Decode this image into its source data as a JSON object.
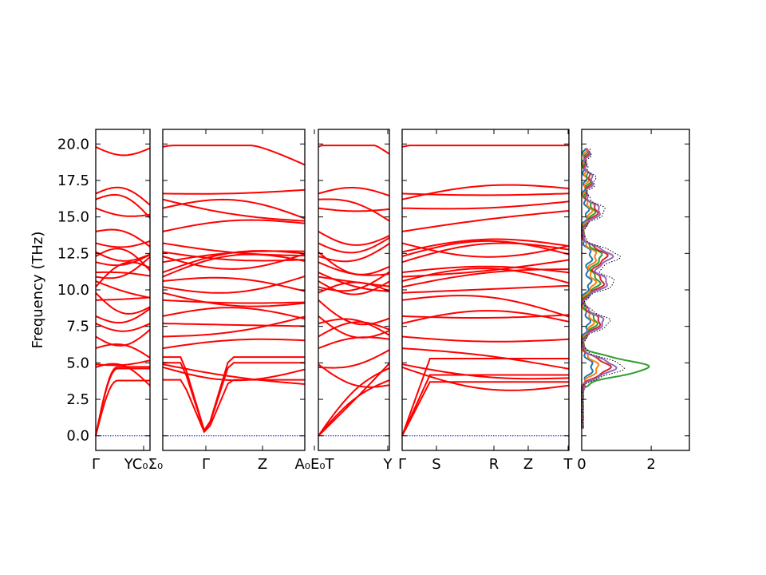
{
  "chart_data": {
    "type": "line",
    "ylabel": "Frequency (THz)",
    "ylim": [
      -1.0,
      21.0
    ],
    "yticks": [
      "0.0",
      "2.5",
      "5.0",
      "7.5",
      "10.0",
      "12.5",
      "15.0",
      "17.5",
      "20.0"
    ],
    "band_color": "#ff0000",
    "zero_line_color": "#0000cc",
    "band_panels": [
      {
        "labels": [
          "Γ",
          "YC₀Σ₀"
        ]
      },
      {
        "labels": [
          "Γ",
          "Z",
          "A₀E₀T"
        ]
      },
      {
        "labels": [
          "Y"
        ]
      },
      {
        "labels": [
          "Γ",
          "S",
          "R",
          "Z",
          "T"
        ]
      }
    ],
    "dos_panel": {
      "xticks": [
        "0",
        "2"
      ],
      "xlim": [
        0,
        3.1
      ],
      "series": [
        {
          "color": "#1f77b4"
        },
        {
          "color": "#ff7f0e"
        },
        {
          "color": "#2ca02c"
        },
        {
          "color": "#d62728"
        },
        {
          "color": "#9467bd"
        },
        {
          "color": "#000000",
          "style": "dotted"
        }
      ]
    }
  }
}
